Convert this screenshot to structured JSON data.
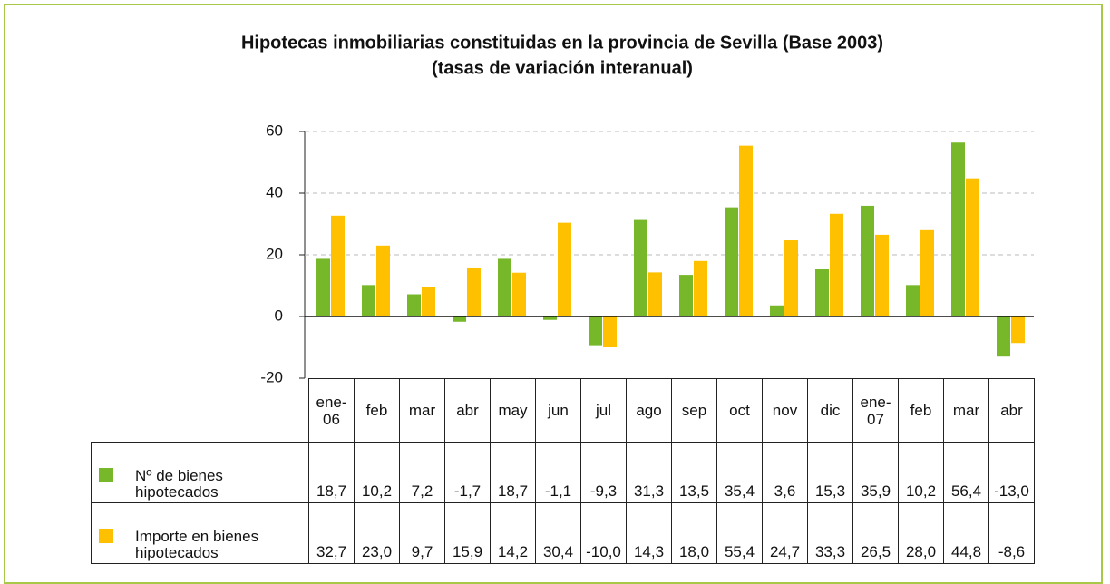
{
  "chart_data": {
    "type": "bar",
    "title": "Hipotecas inmobiliarias constituidas en la provincia de Sevilla (Base 2003)",
    "subtitle": "(tasas de variación interanual)",
    "categories": [
      "ene-06",
      "feb",
      "mar",
      "abr",
      "may",
      "jun",
      "jul",
      "ago",
      "sep",
      "oct",
      "nov",
      "dic",
      "ene-07",
      "feb",
      "mar",
      "abr"
    ],
    "series": [
      {
        "name": "Nº de bienes hipotecados",
        "color": "#77b82a",
        "values": [
          18.7,
          10.2,
          7.2,
          -1.7,
          18.7,
          -1.1,
          -9.3,
          31.3,
          13.5,
          35.4,
          3.6,
          15.3,
          35.9,
          10.2,
          56.4,
          -13.0
        ],
        "value_labels": [
          "18,7",
          "10,2",
          "7,2",
          "-1,7",
          "18,7",
          "-1,1",
          "-9,3",
          "31,3",
          "13,5",
          "35,4",
          "3,6",
          "15,3",
          "35,9",
          "10,2",
          "56,4",
          "-13,0"
        ]
      },
      {
        "name": "Importe en bienes hipotecados",
        "color": "#ffc000",
        "values": [
          32.7,
          23.0,
          9.7,
          15.9,
          14.2,
          30.4,
          -10.0,
          14.3,
          18.0,
          55.4,
          24.7,
          33.3,
          26.5,
          28.0,
          44.8,
          -8.6
        ],
        "value_labels": [
          "32,7",
          "23,0",
          "9,7",
          "15,9",
          "14,2",
          "30,4",
          "-10,0",
          "14,3",
          "18,0",
          "55,4",
          "24,7",
          "33,3",
          "26,5",
          "28,0",
          "44,8",
          "-8,6"
        ]
      }
    ],
    "ylim": [
      -20,
      60
    ],
    "yticks": [
      -20,
      0,
      20,
      40,
      60
    ],
    "grid": true
  }
}
